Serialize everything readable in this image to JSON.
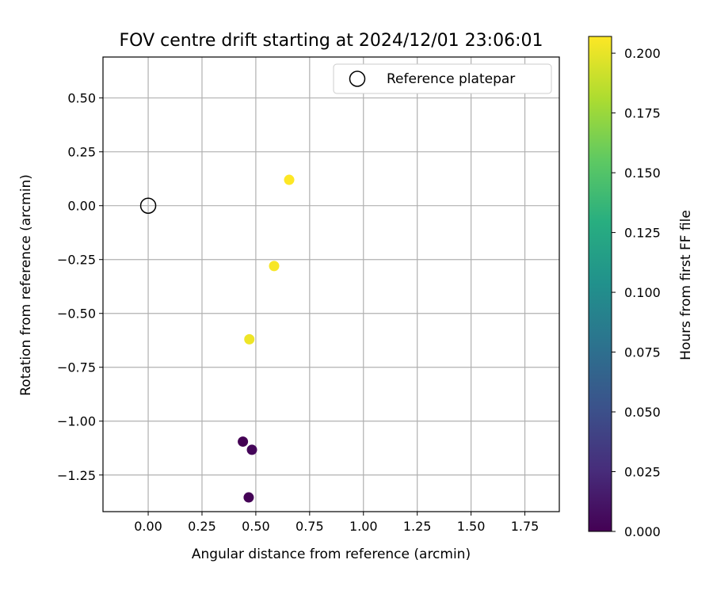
{
  "chart_data": {
    "type": "scatter",
    "title": "FOV centre drift starting at 2024/12/01 23:06:01",
    "xlabel": "Angular distance from reference (arcmin)",
    "ylabel": "Rotation from reference (arcmin)",
    "xlim": [
      -0.21,
      1.91
    ],
    "ylim": [
      -1.42,
      0.69
    ],
    "xticks": [
      0.0,
      0.25,
      0.5,
      0.75,
      1.0,
      1.25,
      1.5,
      1.75
    ],
    "xtick_labels": [
      "0.00",
      "0.25",
      "0.50",
      "0.75",
      "1.00",
      "1.25",
      "1.50",
      "1.75"
    ],
    "yticks": [
      0.5,
      0.25,
      0.0,
      -0.25,
      -0.5,
      -0.75,
      -1.0,
      -1.25
    ],
    "ytick_labels": [
      "0.50",
      "0.25",
      "0.00",
      "−0.25",
      "−0.50",
      "−0.75",
      "−1.00",
      "−1.25"
    ],
    "grid": true,
    "legend": {
      "placement": "top-right",
      "entries": [
        "Reference platepar"
      ]
    },
    "reference_point": {
      "x": 0.0,
      "y": 0.0
    },
    "points": [
      {
        "x": 0.655,
        "y": 0.12,
        "hours": 0.207
      },
      {
        "x": 0.585,
        "y": -0.28,
        "hours": 0.205
      },
      {
        "x": 0.47,
        "y": -0.62,
        "hours": 0.202
      },
      {
        "x": 0.44,
        "y": -1.095,
        "hours": 0.0
      },
      {
        "x": 0.482,
        "y": -1.133,
        "hours": 0.003
      },
      {
        "x": 0.467,
        "y": -1.354,
        "hours": 0.001
      }
    ],
    "colorbar": {
      "label": "Hours from first FF file",
      "colormap": "viridis",
      "range": [
        0.0,
        0.207
      ],
      "ticks": [
        0.0,
        0.025,
        0.05,
        0.075,
        0.1,
        0.125,
        0.15,
        0.175,
        0.2
      ],
      "tick_labels": [
        "0.000",
        "0.025",
        "0.050",
        "0.075",
        "0.100",
        "0.125",
        "0.150",
        "0.175",
        "0.200"
      ]
    }
  }
}
